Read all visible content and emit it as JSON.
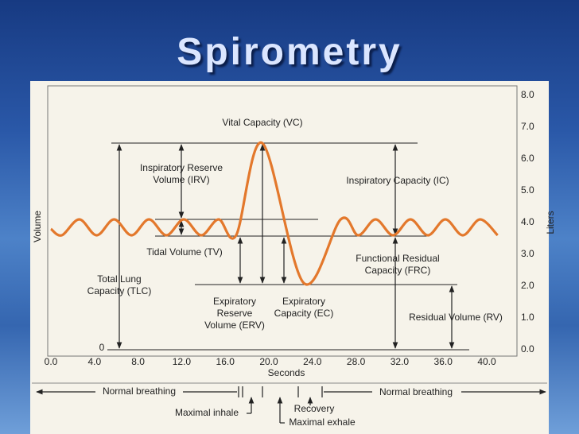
{
  "title": "Spirometry",
  "chart_data": {
    "type": "line",
    "xlabel": "Seconds",
    "ylabel": "Volume",
    "yunit": "Liters",
    "x": [
      0.0,
      1.0,
      2.6,
      4.2,
      5.8,
      7.4,
      9.0,
      10.6,
      12.2,
      13.8,
      15.4,
      17.0,
      19.4,
      23.2,
      26.6,
      28.2,
      29.8,
      31.4,
      33.0,
      34.6,
      36.2,
      37.8,
      39.4,
      41.0
    ],
    "series": [
      {
        "name": "Volume",
        "color": "#e3782c",
        "values": [
          3.8,
          3.6,
          4.1,
          3.6,
          4.1,
          3.6,
          4.1,
          3.6,
          4.1,
          3.6,
          4.1,
          3.6,
          6.5,
          2.1,
          4.1,
          3.6,
          4.1,
          3.6,
          4.1,
          3.6,
          4.1,
          3.6,
          4.1,
          3.6
        ]
      }
    ],
    "xlim": [
      0.0,
      40.0
    ],
    "ylim": [
      0.0,
      8.0
    ],
    "xticks": [
      {
        "value": 0,
        "label": "0.0"
      },
      {
        "value": 4,
        "label": "4.0"
      },
      {
        "value": 8,
        "label": "8.0"
      },
      {
        "value": 12,
        "label": "12.0"
      },
      {
        "value": 16,
        "label": "16.0"
      },
      {
        "value": 20,
        "label": "20.0"
      },
      {
        "value": 24,
        "label": "24.0"
      },
      {
        "value": 28,
        "label": "28.0"
      },
      {
        "value": 32,
        "label": "32.0"
      },
      {
        "value": 36,
        "label": "36.0"
      },
      {
        "value": 40,
        "label": "40.0"
      }
    ],
    "yticks": [
      {
        "value": 0,
        "label": "0.0"
      },
      {
        "value": 1,
        "label": "1.0"
      },
      {
        "value": 2,
        "label": "2.0"
      },
      {
        "value": 3,
        "label": "3.0"
      },
      {
        "value": 4,
        "label": "4.0"
      },
      {
        "value": 5,
        "label": "5.0"
      },
      {
        "value": 6,
        "label": "6.0"
      },
      {
        "value": 7,
        "label": "7.0"
      },
      {
        "value": 8,
        "label": "8.0"
      }
    ],
    "grid": false,
    "annotations": [
      [
        "Vital Capacity (VC)"
      ],
      [
        "Inspiratory Reserve",
        "Volume (IRV)"
      ],
      [
        "Inspiratory Capacity (IC)"
      ],
      [
        "Tidal Volume (TV)"
      ],
      [
        "Functional Residual",
        "Capacity (FRC)"
      ],
      [
        "Total Lung",
        "Capacity (TLC)"
      ],
      [
        "Expiratory",
        "Reserve",
        "Volume (ERV)"
      ],
      [
        "Expiratory",
        "Capacity (EC)"
      ],
      [
        "Residual Volume (RV)"
      ],
      [
        "0"
      ],
      [
        "Normal breathing"
      ],
      [
        "Normal breathing"
      ],
      [
        "Maximal inhale"
      ],
      [
        "Recovery"
      ],
      [
        "Maximal exhale"
      ]
    ]
  }
}
